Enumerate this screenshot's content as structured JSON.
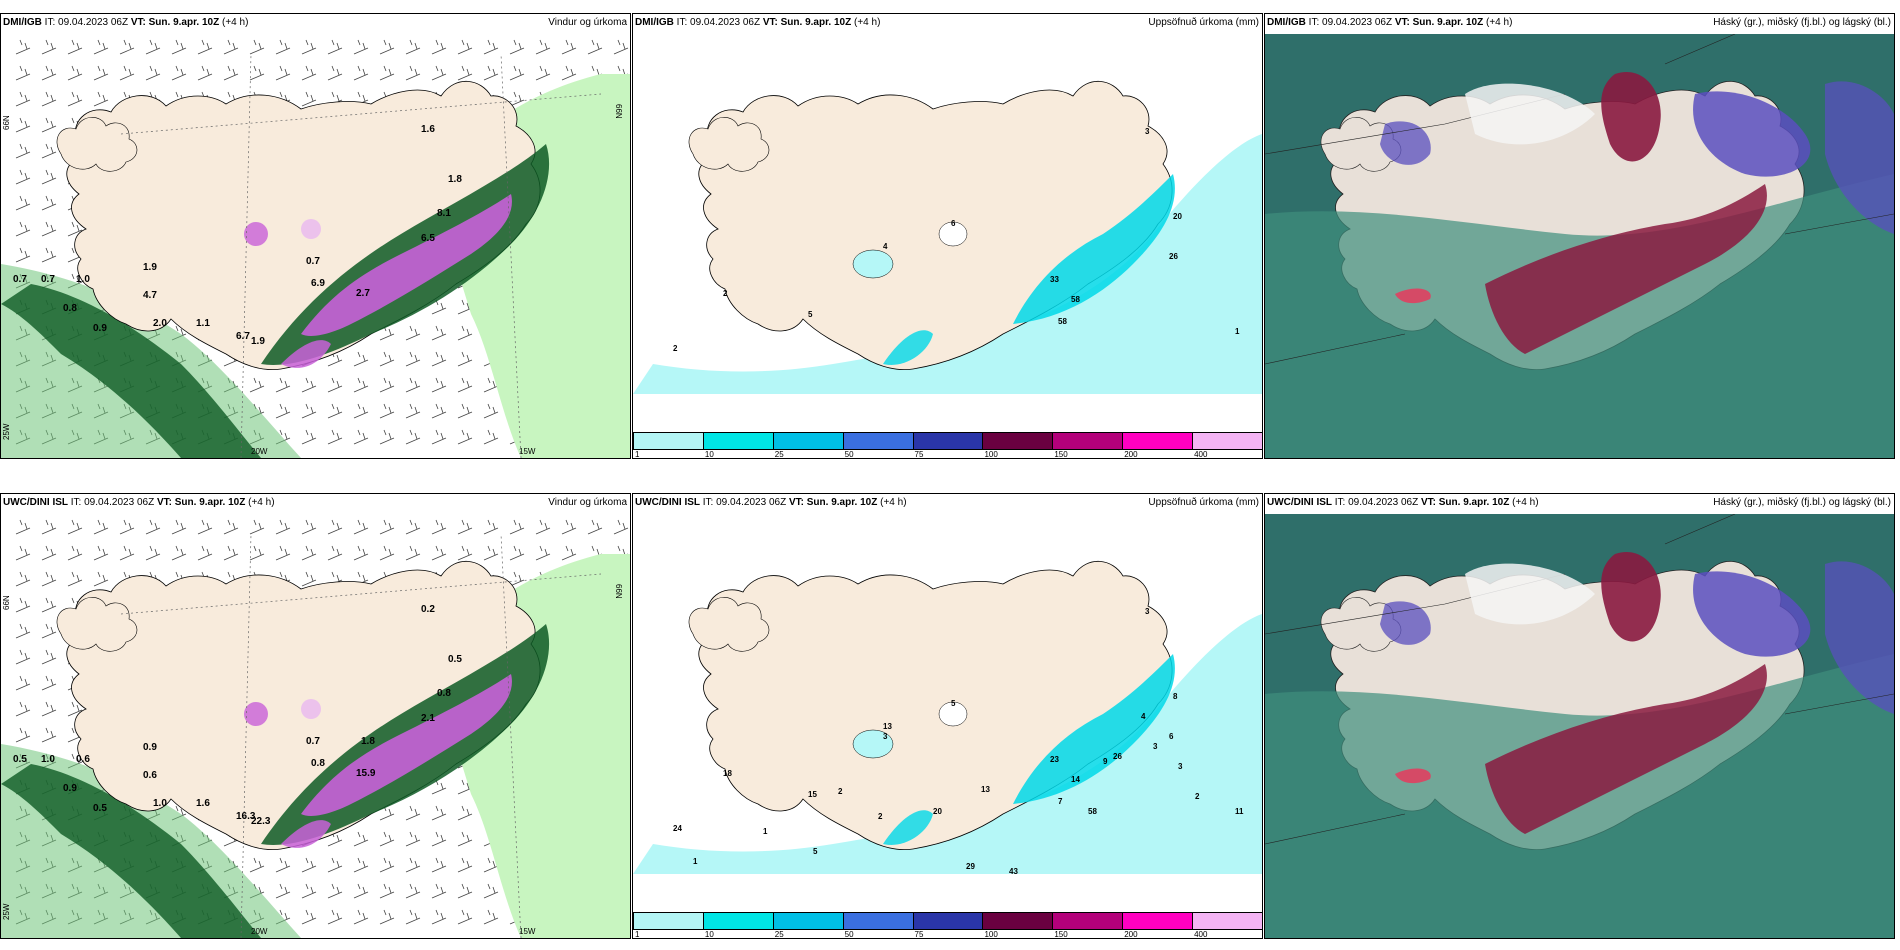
{
  "panels": [
    {
      "id": "p1",
      "model": "DMI/IGB",
      "it_label": "IT:",
      "it": "09.04.2023 06Z",
      "vt_label": "VT:",
      "vt": "Sun. 9.apr. 10Z",
      "lead": "(+4 h)",
      "product": "Vindur og úrkoma",
      "type": "wind",
      "values": [
        "0.7",
        "0.7",
        "1.0",
        "0.8",
        "0.9",
        "1.9",
        "4.7",
        "2.0",
        "1.1",
        "1.6",
        "1.8",
        "8.1",
        "6.5",
        "6.9",
        "2.7",
        "6.7",
        "1.9",
        "0.7"
      ],
      "lat_labels": [
        "66N",
        "66N",
        "25W",
        "20W",
        "15W"
      ]
    },
    {
      "id": "p2",
      "model": "DMI/IGB",
      "it_label": "IT:",
      "it": "09.04.2023 06Z",
      "vt_label": "VT:",
      "vt": "Sun. 9.apr. 10Z",
      "lead": "(+4 h)",
      "product": "Uppsöfnuð úrkoma (mm)",
      "type": "precip",
      "values": [
        "3",
        "20",
        "26",
        "6",
        "4",
        "2",
        "5",
        "2",
        "1",
        "33",
        "58",
        "58"
      ]
    },
    {
      "id": "p3",
      "model": "DMI/IGB",
      "it_label": "IT:",
      "it": "09.04.2023 06Z",
      "vt_label": "VT:",
      "vt": "Sun. 9.apr. 10Z",
      "lead": "(+4 h)",
      "product": "Háský (gr.), miðský (fj.bl.) og lágský (bl.)",
      "type": "cloud"
    },
    {
      "id": "p4",
      "model": "UWC/DINI ISL",
      "it_label": "IT:",
      "it": "09.04.2023 06Z",
      "vt_label": "VT:",
      "vt": "Sun. 9.apr. 10Z",
      "lead": "(+4 h)",
      "product": "Vindur og úrkoma",
      "type": "wind",
      "values": [
        "0.5",
        "1.0",
        "0.6",
        "0.9",
        "0.5",
        "0.9",
        "0.6",
        "1.0",
        "1.6",
        "0.2",
        "0.5",
        "0.8",
        "2.1",
        "0.8",
        "15.9",
        "16.3",
        "22.3",
        "0.7",
        "1.8"
      ],
      "lat_labels": [
        "66N",
        "66N",
        "25W",
        "20W",
        "15W"
      ]
    },
    {
      "id": "p5",
      "model": "UWC/DINI ISL",
      "it_label": "IT:",
      "it": "09.04.2023 06Z",
      "vt_label": "VT:",
      "vt": "Sun. 9.apr. 10Z",
      "lead": "(+4 h)",
      "product": "Uppsöfnuð úrkoma (mm)",
      "type": "precip",
      "values": [
        "3",
        "8",
        "6",
        "5",
        "13",
        "18",
        "15",
        "24",
        "11",
        "23",
        "14",
        "7",
        "4",
        "3",
        "3",
        "2",
        "9",
        "13",
        "29",
        "43",
        "3",
        "2",
        "1",
        "1",
        "2",
        "5",
        "20",
        "26",
        "58"
      ]
    },
    {
      "id": "p6",
      "model": "UWC/DINI ISL",
      "it_label": "IT:",
      "it": "09.04.2023 06Z",
      "vt_label": "VT:",
      "vt": "Sun. 9.apr. 10Z",
      "lead": "(+4 h)",
      "product": "Háský (gr.), miðský (fj.bl.) og lágský (bl.)",
      "type": "cloud"
    }
  ],
  "colorbar": {
    "colors": [
      "#b3f5f5",
      "#00e5e5",
      "#00bfe6",
      "#3a6fe0",
      "#2a35a8",
      "#6a0040",
      "#b3007a",
      "#ff00c0",
      "#f4b4f4"
    ],
    "labels": [
      "1",
      "10",
      "25",
      "50",
      "75",
      "100",
      "150",
      "200",
      "400"
    ]
  },
  "colors": {
    "land": "#f8ebdc",
    "precip_light": "#b5f7f7",
    "wind_light": "#c8f5c0",
    "wind_mid": "#6fc47a",
    "wind_dark": "#0e5a24",
    "wind_purple": "#c860d8",
    "cloud_high": "#3f8f7d",
    "cloud_mid": "#5a4fbf",
    "cloud_low": "#8a1a40"
  }
}
